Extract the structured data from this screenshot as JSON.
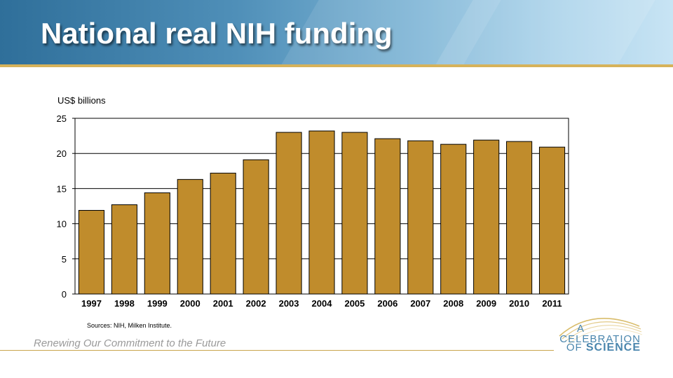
{
  "slide": {
    "title": "National real NIH funding",
    "source": "Sources: NIH, Milken Institute.",
    "tagline": "Renewing Our Commitment to the Future"
  },
  "logo": {
    "line1": "A",
    "line2": "CELEBRATION",
    "line3_prefix": "OF",
    "line3_emph": "SCIENCE",
    "color": "#4a86ad"
  },
  "colors": {
    "bar": "#c08c2c",
    "bar_stroke": "#000000",
    "grid": "#000000",
    "banner": "#4f8fb8",
    "accent": "#d6b25a"
  },
  "chart_data": {
    "type": "bar",
    "title": "",
    "ylabel": "US$ billions",
    "xlabel": "",
    "ylim": [
      0,
      25
    ],
    "yticks": [
      0,
      5,
      10,
      15,
      20,
      25
    ],
    "grid": true,
    "categories": [
      "1997",
      "1998",
      "1999",
      "2000",
      "2001",
      "2002",
      "2003",
      "2004",
      "2005",
      "2006",
      "2007",
      "2008",
      "2009",
      "2010",
      "2011"
    ],
    "values": [
      11.9,
      12.7,
      14.4,
      16.3,
      17.2,
      19.1,
      23.0,
      23.2,
      23.0,
      22.1,
      21.8,
      21.3,
      21.9,
      21.7,
      20.9
    ]
  }
}
